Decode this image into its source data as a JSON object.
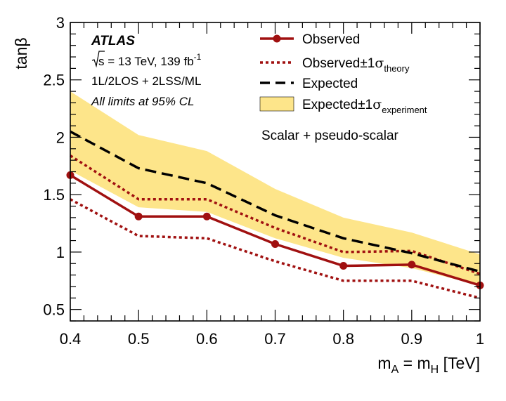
{
  "chart_data": {
    "type": "line",
    "title": "",
    "xlabel": {
      "main": "m",
      "sub1": "A",
      "mid": " = m",
      "sub2": "H",
      "tail": " [TeV]"
    },
    "ylabel": "tanβ",
    "xlim": [
      0.4,
      1.0
    ],
    "ylim": [
      0.4,
      3.0
    ],
    "x_ticks": [
      0.4,
      0.5,
      0.6,
      0.7,
      0.8,
      0.9,
      1.0
    ],
    "x_tick_labels": [
      "0.4",
      "0.5",
      "0.6",
      "0.7",
      "0.8",
      "0.9",
      "1"
    ],
    "y_ticks": [
      0.5,
      1.0,
      1.5,
      2.0,
      2.5,
      3.0
    ],
    "y_tick_labels": [
      "0.5",
      "1",
      "1.5",
      "2",
      "2.5",
      "3"
    ],
    "x": [
      0.4,
      0.5,
      0.6,
      0.7,
      0.8,
      0.9,
      1.0
    ],
    "series": [
      {
        "name": "Observed",
        "style": "solid-markers",
        "color": "#a01010",
        "values": [
          1.67,
          1.31,
          1.31,
          1.07,
          0.88,
          0.89,
          0.71
        ]
      },
      {
        "name": "Observed ±1σ theory (up)",
        "style": "dotted",
        "color": "#a01010",
        "values": [
          1.84,
          1.46,
          1.46,
          1.21,
          1.0,
          1.01,
          0.81
        ]
      },
      {
        "name": "Observed ±1σ theory (down)",
        "style": "dotted",
        "color": "#a01010",
        "values": [
          1.46,
          1.14,
          1.12,
          0.92,
          0.75,
          0.75,
          0.6
        ]
      },
      {
        "name": "Expected",
        "style": "dashed",
        "color": "#000000",
        "values": [
          2.05,
          1.73,
          1.6,
          1.32,
          1.12,
          0.99,
          0.83
        ]
      }
    ],
    "band": {
      "name": "Expected ±1σ experiment",
      "color": "#fde58a",
      "upper": [
        2.4,
        2.02,
        1.88,
        1.55,
        1.3,
        1.17,
        0.98
      ],
      "lower": [
        1.71,
        1.39,
        1.35,
        1.12,
        0.95,
        0.86,
        0.71
      ]
    },
    "legend": {
      "position": "top-right",
      "entries": [
        {
          "key": "observed",
          "text": "Observed",
          "sub": "",
          "pm": false
        },
        {
          "key": "theory",
          "text": "Observed",
          "sub": "theory",
          "pm": true
        },
        {
          "key": "expected",
          "text": "Expected",
          "sub": "",
          "pm": false
        },
        {
          "key": "experiment",
          "text": "Expected",
          "sub": "experiment",
          "pm": true
        }
      ]
    },
    "annotations": {
      "experiment": "ATLAS",
      "energy_prefix": "s = 13 TeV, 139 fb",
      "lumi_exp": "-1",
      "channels": "1L/2LOS + 2LSS/ML",
      "cl": "All limits at 95% CL",
      "model": "Scalar + pseudo-scalar"
    }
  }
}
